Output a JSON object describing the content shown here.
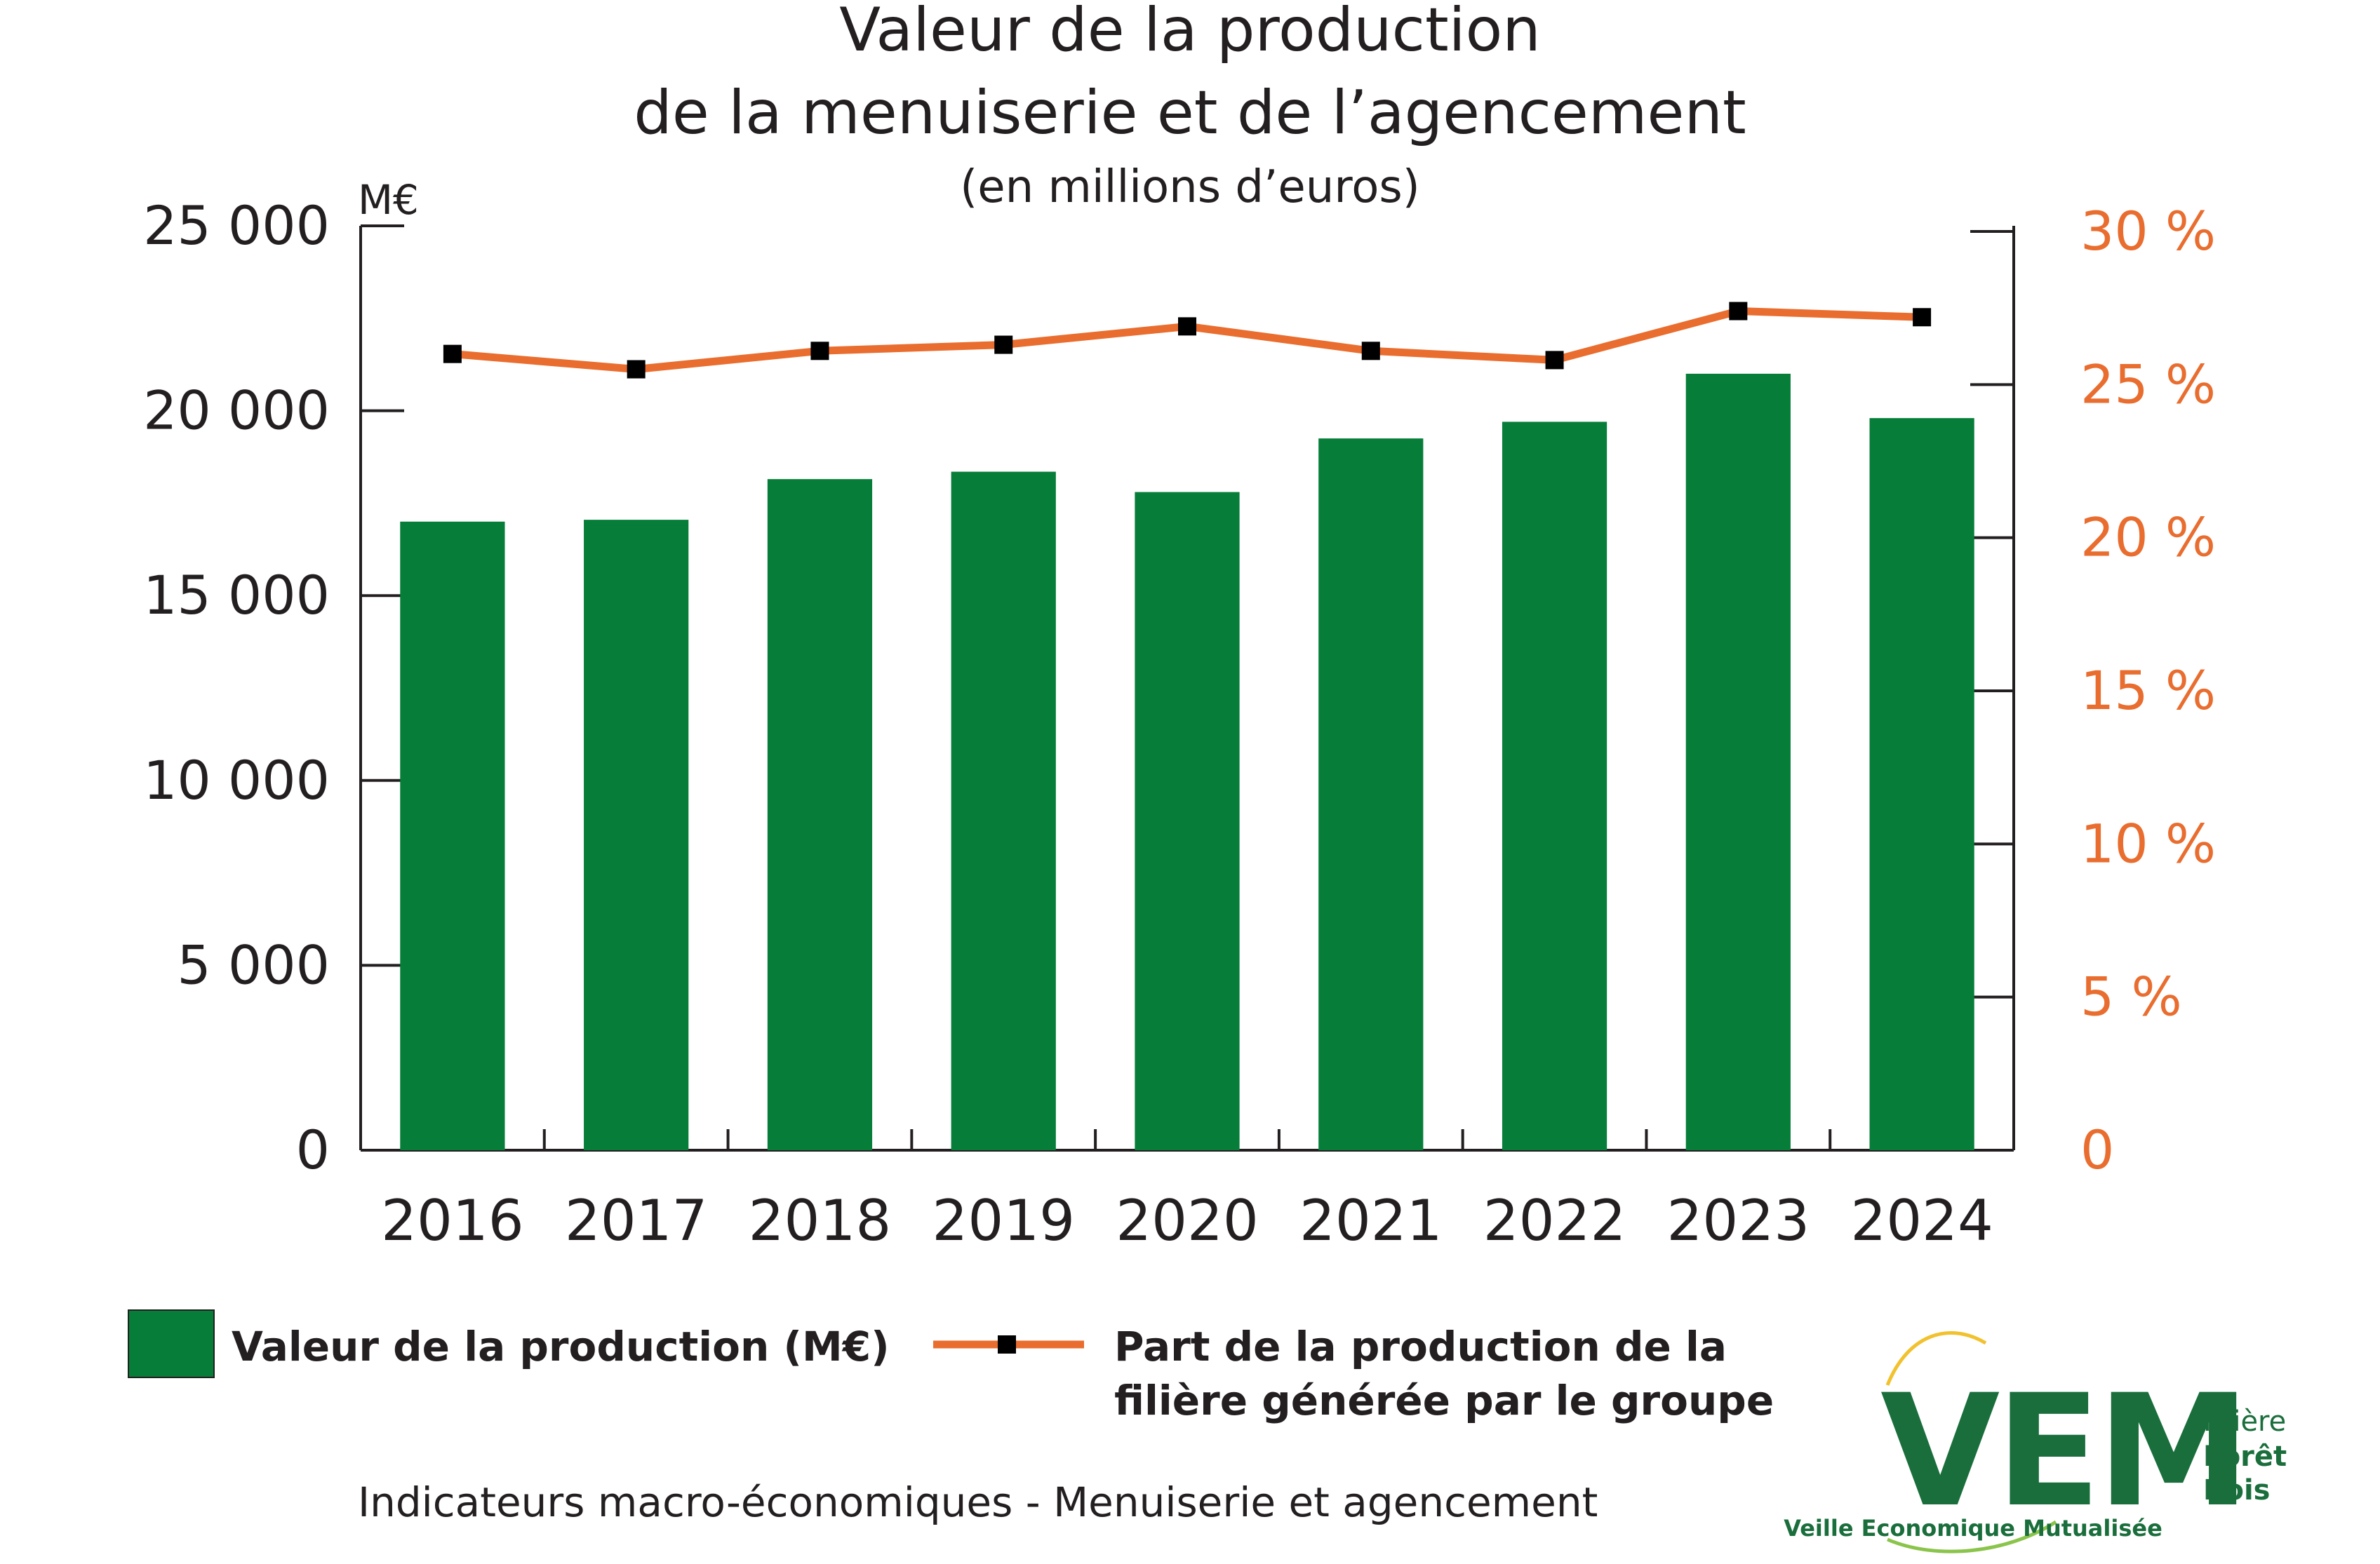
{
  "chart_data": {
    "type": "bar",
    "title_line1": "Valeur de la production",
    "title_line2": "de la menuiserie et de l’agencement",
    "subtitle": "(en millions d’euros)",
    "y_unit": "M€",
    "categories": [
      "2016",
      "2017",
      "2018",
      "2019",
      "2020",
      "2021",
      "2022",
      "2023",
      "2024"
    ],
    "series": [
      {
        "name": "Valeur de la production (M€)",
        "type": "bar",
        "axis": "left",
        "color": "#067d38",
        "values": [
          17000,
          17050,
          18150,
          18350,
          17800,
          19250,
          19700,
          21000,
          19800
        ]
      },
      {
        "name": "Part de la production de la filière générée par le groupe",
        "type": "line",
        "axis": "right",
        "color": "#e96d2f",
        "marker_color": "#000000",
        "values": [
          26.0,
          25.5,
          26.1,
          26.3,
          26.9,
          26.1,
          25.8,
          27.4,
          27.2
        ]
      }
    ],
    "y_left": {
      "min": 0,
      "max": 25000,
      "ticks": [
        0,
        5000,
        10000,
        15000,
        20000,
        25000
      ],
      "tick_labels": [
        "0",
        "5 000",
        "10 000",
        "15 000",
        "20 000",
        "25 000"
      ]
    },
    "y_right": {
      "min": 0,
      "max": 30,
      "ticks": [
        0,
        5,
        10,
        15,
        20,
        25,
        30
      ],
      "tick_labels": [
        "0",
        "5 %",
        "10 %",
        "15 %",
        "20 %",
        "25 %",
        "30 %"
      ],
      "color": "#e96d2f"
    },
    "grid": false,
    "legend_position": "bottom"
  },
  "footer": {
    "text": "Indicateurs macro-économiques - Menuiserie et agencement"
  },
  "logo": {
    "letters": "VEM",
    "line1": "Filière",
    "line2": "Forêt",
    "line3": "Bois",
    "tagline": "Veille Economique Mutualisée",
    "color": "#1a6e3c",
    "accent": "#f2c12e"
  }
}
